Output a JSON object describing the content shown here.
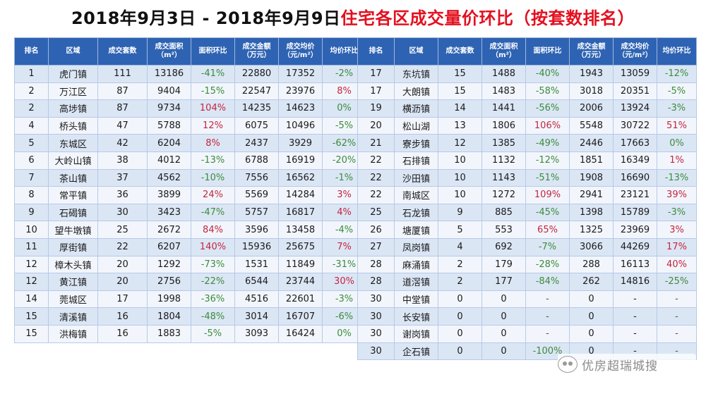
{
  "title": {
    "main": "2018年9月3日 - 2018年9月9日",
    "highlight": "住宅各区成交量价环比（按套数排名）"
  },
  "headers": [
    "排名",
    "区域",
    "成交套数",
    "成交面积（m²）",
    "面积环比",
    "成交金额（万元）",
    "成交均价（元/m²）",
    "均价环比"
  ],
  "left_rows": [
    [
      "1",
      "虎门镇",
      "111",
      "13186",
      "-41%",
      "22880",
      "17352",
      "-2%"
    ],
    [
      "2",
      "万江区",
      "87",
      "9404",
      "-15%",
      "22547",
      "23976",
      "8%"
    ],
    [
      "2",
      "高埗镇",
      "87",
      "9734",
      "104%",
      "14235",
      "14623",
      "0%"
    ],
    [
      "4",
      "桥头镇",
      "47",
      "5788",
      "12%",
      "6075",
      "10496",
      "-5%"
    ],
    [
      "5",
      "东城区",
      "42",
      "6204",
      "8%",
      "2437",
      "3929",
      "-62%"
    ],
    [
      "6",
      "大岭山镇",
      "38",
      "4012",
      "-13%",
      "6788",
      "16919",
      "-20%"
    ],
    [
      "7",
      "茶山镇",
      "37",
      "4562",
      "-10%",
      "7556",
      "16562",
      "-1%"
    ],
    [
      "8",
      "常平镇",
      "36",
      "3899",
      "24%",
      "5569",
      "14284",
      "3%"
    ],
    [
      "9",
      "石碣镇",
      "30",
      "3423",
      "-47%",
      "5757",
      "16817",
      "4%"
    ],
    [
      "10",
      "望牛墩镇",
      "25",
      "2672",
      "84%",
      "3596",
      "13458",
      "-4%"
    ],
    [
      "11",
      "厚街镇",
      "22",
      "6207",
      "140%",
      "15936",
      "25675",
      "7%"
    ],
    [
      "12",
      "樟木头镇",
      "20",
      "1292",
      "-73%",
      "1531",
      "11849",
      "-31%"
    ],
    [
      "12",
      "黄江镇",
      "20",
      "2756",
      "-22%",
      "6544",
      "23744",
      "30%"
    ],
    [
      "14",
      "莞城区",
      "17",
      "1998",
      "-36%",
      "4516",
      "22601",
      "-3%"
    ],
    [
      "15",
      "清溪镇",
      "16",
      "1804",
      "-48%",
      "3014",
      "16707",
      "-6%"
    ],
    [
      "15",
      "洪梅镇",
      "16",
      "1883",
      "-5%",
      "3093",
      "16424",
      "0%"
    ]
  ],
  "right_rows": [
    [
      "17",
      "东坑镇",
      "15",
      "1488",
      "-40%",
      "1943",
      "13059",
      "-12%"
    ],
    [
      "17",
      "大朗镇",
      "15",
      "1483",
      "-58%",
      "3018",
      "20351",
      "-5%"
    ],
    [
      "19",
      "横沥镇",
      "14",
      "1441",
      "-56%",
      "2006",
      "13924",
      "-3%"
    ],
    [
      "20",
      "松山湖",
      "13",
      "1806",
      "106%",
      "5548",
      "30722",
      "51%"
    ],
    [
      "21",
      "寮步镇",
      "12",
      "1385",
      "-49%",
      "2446",
      "17663",
      "0%"
    ],
    [
      "22",
      "石排镇",
      "10",
      "1132",
      "-12%",
      "1851",
      "16349",
      "1%"
    ],
    [
      "22",
      "沙田镇",
      "10",
      "1143",
      "-51%",
      "1908",
      "16690",
      "-13%"
    ],
    [
      "22",
      "南城区",
      "10",
      "1272",
      "109%",
      "2941",
      "23121",
      "39%"
    ],
    [
      "25",
      "石龙镇",
      "9",
      "885",
      "-45%",
      "1398",
      "15789",
      "-3%"
    ],
    [
      "26",
      "塘厦镇",
      "5",
      "553",
      "65%",
      "1325",
      "23969",
      "3%"
    ],
    [
      "27",
      "凤岗镇",
      "4",
      "692",
      "-7%",
      "3066",
      "44269",
      "17%"
    ],
    [
      "28",
      "麻涌镇",
      "2",
      "179",
      "-28%",
      "288",
      "16113",
      "40%"
    ],
    [
      "28",
      "道滘镇",
      "2",
      "177",
      "-84%",
      "262",
      "14816",
      "-25%"
    ],
    [
      "30",
      "中堂镇",
      "0",
      "0",
      "-",
      "0",
      "-",
      "-"
    ],
    [
      "30",
      "长安镇",
      "0",
      "0",
      "-",
      "0",
      "-",
      "-"
    ],
    [
      "30",
      "谢岗镇",
      "0",
      "0",
      "-",
      "0",
      "-",
      "-"
    ],
    [
      "30",
      "企石镇",
      "0",
      "0",
      "-100%",
      "0",
      "-",
      "-"
    ]
  ],
  "watermark": {
    "icon": "wechat-icon",
    "text": "优房超瑞城搜"
  },
  "colors": {
    "header_bg": "#2e63b3",
    "title_red": "#e3101f",
    "negative": "#3c8b3c",
    "positive": "#c4253f"
  }
}
